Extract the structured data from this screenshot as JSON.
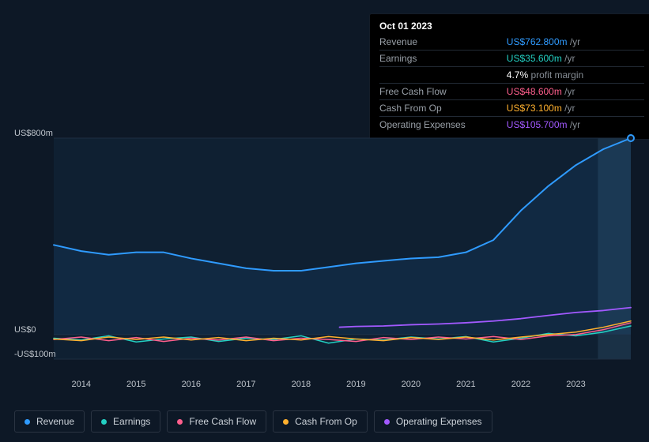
{
  "background_color": "#0d1826",
  "chart": {
    "plot_bg_left": "#0f2032",
    "plot_bg_right": "#1a3146",
    "grid_color": "#1e2e42",
    "axis_label_color": "#bfc5cc",
    "axis_fontsize": 11,
    "x_start": 2013.5,
    "x_end": 2024.0,
    "x_ticks": [
      2014,
      2015,
      2016,
      2017,
      2018,
      2019,
      2020,
      2021,
      2022,
      2023
    ],
    "y_min": -100,
    "y_max": 800,
    "y_ticks": [
      {
        "v": 800,
        "label": "US$800m"
      },
      {
        "v": 0,
        "label": "US$0"
      },
      {
        "v": -100,
        "label": "-US$100m"
      }
    ],
    "future_x": 2023.4,
    "series": [
      {
        "key": "revenue",
        "label": "Revenue",
        "color": "#2f9bff",
        "width": 2,
        "fill": true,
        "fill_opacity": 0.08,
        "pts": [
          [
            2013.5,
            365
          ],
          [
            2014,
            340
          ],
          [
            2014.5,
            325
          ],
          [
            2015,
            335
          ],
          [
            2015.5,
            335
          ],
          [
            2016,
            310
          ],
          [
            2016.5,
            290
          ],
          [
            2017,
            270
          ],
          [
            2017.5,
            260
          ],
          [
            2018,
            260
          ],
          [
            2018.5,
            275
          ],
          [
            2019,
            290
          ],
          [
            2019.5,
            300
          ],
          [
            2020,
            310
          ],
          [
            2020.5,
            315
          ],
          [
            2021,
            335
          ],
          [
            2021.5,
            385
          ],
          [
            2022,
            505
          ],
          [
            2022.5,
            605
          ],
          [
            2023,
            690
          ],
          [
            2023.5,
            755
          ],
          [
            2024,
            800
          ]
        ]
      },
      {
        "key": "earnings",
        "label": "Earnings",
        "color": "#23d0c3",
        "width": 1.5,
        "pts": [
          [
            2013.5,
            -15
          ],
          [
            2014,
            -22
          ],
          [
            2014.5,
            -5
          ],
          [
            2015,
            -30
          ],
          [
            2015.5,
            -18
          ],
          [
            2016,
            -10
          ],
          [
            2016.5,
            -28
          ],
          [
            2017,
            -15
          ],
          [
            2017.5,
            -20
          ],
          [
            2018,
            -5
          ],
          [
            2018.5,
            -35
          ],
          [
            2019,
            -18
          ],
          [
            2019.5,
            -22
          ],
          [
            2020,
            -10
          ],
          [
            2020.5,
            -18
          ],
          [
            2021,
            -8
          ],
          [
            2021.5,
            -30
          ],
          [
            2022,
            -15
          ],
          [
            2022.5,
            5
          ],
          [
            2023,
            -5
          ],
          [
            2023.5,
            10
          ],
          [
            2024,
            35
          ]
        ]
      },
      {
        "key": "fcf",
        "label": "Free Cash Flow",
        "color": "#ff5f8d",
        "width": 1.5,
        "pts": [
          [
            2013.5,
            -20
          ],
          [
            2014,
            -10
          ],
          [
            2014.5,
            -25
          ],
          [
            2015,
            -12
          ],
          [
            2015.5,
            -28
          ],
          [
            2016,
            -15
          ],
          [
            2016.5,
            -22
          ],
          [
            2017,
            -10
          ],
          [
            2017.5,
            -25
          ],
          [
            2018,
            -15
          ],
          [
            2018.5,
            -20
          ],
          [
            2019,
            -28
          ],
          [
            2019.5,
            -12
          ],
          [
            2020,
            -20
          ],
          [
            2020.5,
            -10
          ],
          [
            2021,
            -18
          ],
          [
            2021.5,
            -8
          ],
          [
            2022,
            -20
          ],
          [
            2022.5,
            -5
          ],
          [
            2023,
            0
          ],
          [
            2023.5,
            20
          ],
          [
            2024,
            48
          ]
        ]
      },
      {
        "key": "cfo",
        "label": "Cash From Op",
        "color": "#ffb02e",
        "width": 1.5,
        "pts": [
          [
            2013.5,
            -18
          ],
          [
            2014,
            -25
          ],
          [
            2014.5,
            -10
          ],
          [
            2015,
            -20
          ],
          [
            2015.5,
            -10
          ],
          [
            2016,
            -22
          ],
          [
            2016.5,
            -12
          ],
          [
            2017,
            -25
          ],
          [
            2017.5,
            -15
          ],
          [
            2018,
            -22
          ],
          [
            2018.5,
            -8
          ],
          [
            2019,
            -18
          ],
          [
            2019.5,
            -25
          ],
          [
            2020,
            -12
          ],
          [
            2020.5,
            -20
          ],
          [
            2021,
            -10
          ],
          [
            2021.5,
            -22
          ],
          [
            2022,
            -10
          ],
          [
            2022.5,
            0
          ],
          [
            2023,
            10
          ],
          [
            2023.5,
            30
          ],
          [
            2024,
            55
          ]
        ]
      },
      {
        "key": "opex",
        "label": "Operating Expenses",
        "color": "#a259ff",
        "width": 1.8,
        "pts": [
          [
            2018.7,
            30
          ],
          [
            2019,
            33
          ],
          [
            2019.5,
            35
          ],
          [
            2020,
            40
          ],
          [
            2020.5,
            43
          ],
          [
            2021,
            48
          ],
          [
            2021.5,
            55
          ],
          [
            2022,
            65
          ],
          [
            2022.5,
            78
          ],
          [
            2023,
            90
          ],
          [
            2023.5,
            98
          ],
          [
            2024,
            110
          ]
        ]
      }
    ],
    "highlight_x": 2023.75,
    "highlight_dot_color": "#2f9bff"
  },
  "tooltip": {
    "title": "Oct 01 2023",
    "rows": [
      {
        "label": "Revenue",
        "value": "US$762.800m",
        "unit": "/yr",
        "color": "#2f9bff"
      },
      {
        "label": "Earnings",
        "value": "US$35.600m",
        "unit": "/yr",
        "color": "#23d0c3"
      },
      {
        "label": "",
        "value": "4.7%",
        "unit": "profit margin",
        "color": "#ffffff"
      },
      {
        "label": "Free Cash Flow",
        "value": "US$48.600m",
        "unit": "/yr",
        "color": "#ff5f8d"
      },
      {
        "label": "Cash From Op",
        "value": "US$73.100m",
        "unit": "/yr",
        "color": "#ffb02e"
      },
      {
        "label": "Operating Expenses",
        "value": "US$105.700m",
        "unit": "/yr",
        "color": "#a259ff"
      }
    ]
  },
  "legend": {
    "border_color": "#2a3442",
    "text_color": "#ccd2d9"
  }
}
